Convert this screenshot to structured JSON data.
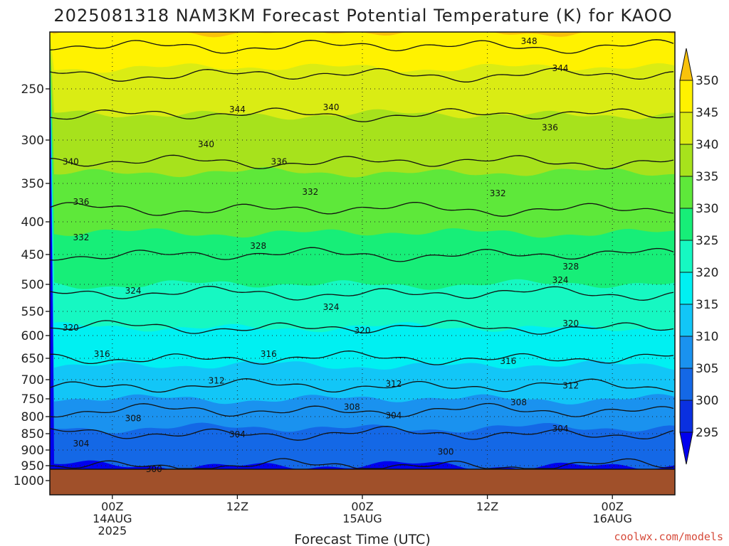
{
  "chart_data": {
    "type": "heatmap",
    "title": "2025081318 NAM3KM Forecast Potential Temperature (K) for KAOO",
    "xlabel": "Forecast Time (UTC)",
    "ylabel": "",
    "y_ticks": [
      "250",
      "300",
      "350",
      "400",
      "450",
      "500",
      "550",
      "600",
      "650",
      "700",
      "750",
      "800",
      "850",
      "900",
      "950",
      "1000"
    ],
    "y_values": [
      250,
      300,
      350,
      400,
      450,
      500,
      550,
      600,
      650,
      700,
      750,
      800,
      850,
      900,
      950,
      1000
    ],
    "y_range": [
      200,
      1000
    ],
    "x_ticks": [
      {
        "hours": 6,
        "lines": [
          "00Z",
          "14AUG",
          "2025"
        ]
      },
      {
        "hours": 18,
        "lines": [
          "12Z"
        ]
      },
      {
        "hours": 30,
        "lines": [
          "00Z",
          "15AUG"
        ]
      },
      {
        "hours": 42,
        "lines": [
          "12Z"
        ]
      },
      {
        "hours": 54,
        "lines": [
          "00Z",
          "16AUG"
        ]
      }
    ],
    "x_range_hours": [
      0,
      60
    ],
    "colorbar": {
      "levels": [
        295,
        300,
        305,
        310,
        315,
        320,
        325,
        330,
        335,
        340,
        345,
        350
      ],
      "colors": [
        "#0000ee",
        "#0a30e0",
        "#1468e6",
        "#1a92ef",
        "#12c6f7",
        "#00f0f2",
        "#16f8c2",
        "#17ee78",
        "#5ee83a",
        "#a7e21c",
        "#daec14",
        "#fff200",
        "#f9c20b"
      ]
    },
    "profile": [
      {
        "p": 200,
        "theta": 350
      },
      {
        "p": 250,
        "theta": 342
      },
      {
        "p": 300,
        "theta": 338
      },
      {
        "p": 350,
        "theta": 334
      },
      {
        "p": 400,
        "theta": 331
      },
      {
        "p": 450,
        "theta": 328
      },
      {
        "p": 500,
        "theta": 325
      },
      {
        "p": 550,
        "theta": 322
      },
      {
        "p": 600,
        "theta": 319
      },
      {
        "p": 650,
        "theta": 316
      },
      {
        "p": 700,
        "theta": 313
      },
      {
        "p": 750,
        "theta": 310
      },
      {
        "p": 800,
        "theta": 307
      },
      {
        "p": 850,
        "theta": 304
      },
      {
        "p": 900,
        "theta": 302
      },
      {
        "p": 950,
        "theta": 300
      }
    ],
    "contour_labels": [
      {
        "hours": 46,
        "p": 208,
        "text": "348"
      },
      {
        "hours": 49,
        "p": 232,
        "text": "344"
      },
      {
        "hours": 18,
        "p": 270,
        "text": "344"
      },
      {
        "hours": 27,
        "p": 268,
        "text": "340"
      },
      {
        "hours": 48,
        "p": 288,
        "text": "336"
      },
      {
        "hours": 2,
        "p": 325,
        "text": "340"
      },
      {
        "hours": 15,
        "p": 305,
        "text": "340"
      },
      {
        "hours": 22,
        "p": 325,
        "text": "336"
      },
      {
        "hours": 3,
        "p": 374,
        "text": "336"
      },
      {
        "hours": 25,
        "p": 361,
        "text": "332"
      },
      {
        "hours": 43,
        "p": 363,
        "text": "332"
      },
      {
        "hours": 3,
        "p": 424,
        "text": "332"
      },
      {
        "hours": 20,
        "p": 437,
        "text": "328"
      },
      {
        "hours": 50,
        "p": 470,
        "text": "328"
      },
      {
        "hours": 8,
        "p": 512,
        "text": "324"
      },
      {
        "hours": 27,
        "p": 542,
        "text": "324"
      },
      {
        "hours": 49,
        "p": 493,
        "text": "324"
      },
      {
        "hours": 2,
        "p": 584,
        "text": "320"
      },
      {
        "hours": 30,
        "p": 590,
        "text": "320"
      },
      {
        "hours": 50,
        "p": 575,
        "text": "320"
      },
      {
        "hours": 5,
        "p": 641,
        "text": "316"
      },
      {
        "hours": 21,
        "p": 641,
        "text": "316"
      },
      {
        "hours": 44,
        "p": 657,
        "text": "316"
      },
      {
        "hours": 16,
        "p": 703,
        "text": "312"
      },
      {
        "hours": 33,
        "p": 711,
        "text": "312"
      },
      {
        "hours": 50,
        "p": 716,
        "text": "312"
      },
      {
        "hours": 8,
        "p": 805,
        "text": "308"
      },
      {
        "hours": 29,
        "p": 773,
        "text": "308"
      },
      {
        "hours": 45,
        "p": 760,
        "text": "308"
      },
      {
        "hours": 33,
        "p": 797,
        "text": "304"
      },
      {
        "hours": 3,
        "p": 880,
        "text": "304"
      },
      {
        "hours": 18,
        "p": 852,
        "text": "304"
      },
      {
        "hours": 49,
        "p": 835,
        "text": "304"
      },
      {
        "hours": 10,
        "p": 962,
        "text": "300"
      },
      {
        "hours": 38,
        "p": 906,
        "text": "300"
      }
    ]
  },
  "credit": "coolwx.com/models"
}
